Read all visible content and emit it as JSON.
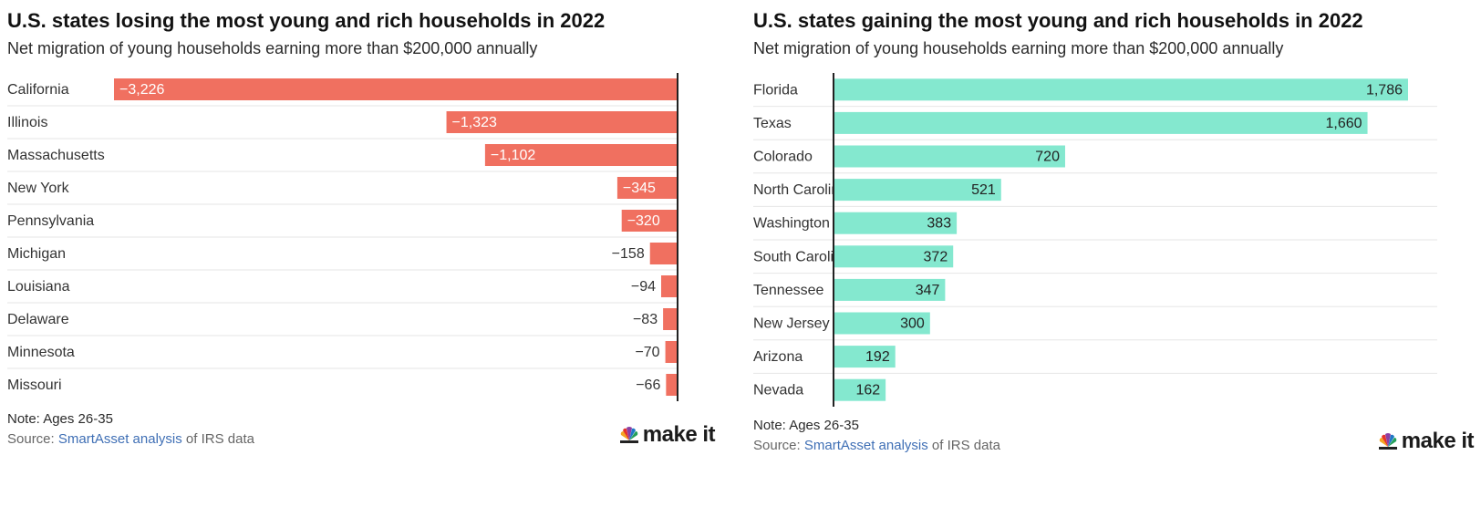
{
  "charts": [
    {
      "title": "U.S. states losing the most young and rich households in 2022",
      "subtitle": "Net migration of young households earning more than $200,000 annually",
      "note": "Note: Ages 26-35",
      "source_prefix": "Source: ",
      "source_link": "SmartAsset analysis",
      "source_suffix": " of IRS data",
      "brand_logo": "cnbc-peacock-icon",
      "brand_text": "make it"
    },
    {
      "title": "U.S. states gaining the most young and rich households in 2022",
      "subtitle": "Net migration of young households earning more than $200,000 annually",
      "note": "Note: Ages 26-35",
      "source_prefix": "Source: ",
      "source_link": "SmartAsset analysis",
      "source_suffix": " of IRS data",
      "brand_logo": "cnbc-peacock-icon",
      "brand_text": "make it"
    }
  ],
  "colors": {
    "negative_bar": "#f07060",
    "positive_bar": "#84e8cf",
    "axis": "#222222",
    "link": "#3f6fb5"
  },
  "chart_data": [
    {
      "type": "bar",
      "orientation": "horizontal",
      "title": "U.S. states losing the most young and rich households in 2022",
      "subtitle": "Net migration of young households earning more than $200,000 annually",
      "categories": [
        "California",
        "Illinois",
        "Massachusetts",
        "New York",
        "Pennsylvania",
        "Michigan",
        "Louisiana",
        "Delaware",
        "Minnesota",
        "Missouri"
      ],
      "values": [
        -3226,
        -1323,
        -1102,
        -345,
        -320,
        -158,
        -94,
        -83,
        -70,
        -66
      ],
      "value_labels": [
        "−3,226",
        "−1,323",
        "−1,102",
        "−345",
        "−320",
        "−158",
        "−94",
        "−83",
        "−70",
        "−66"
      ],
      "xlim": [
        -3226,
        0
      ],
      "grid": false,
      "bar_color": "#f07060"
    },
    {
      "type": "bar",
      "orientation": "horizontal",
      "title": "U.S. states gaining the most young and rich households in 2022",
      "subtitle": "Net migration of young households earning more than $200,000 annually",
      "categories": [
        "Florida",
        "Texas",
        "Colorado",
        "North Carolina",
        "Washington",
        "South Carolina",
        "Tennessee",
        "New Jersey",
        "Arizona",
        "Nevada"
      ],
      "values": [
        1786,
        1660,
        720,
        521,
        383,
        372,
        347,
        300,
        192,
        162
      ],
      "value_labels": [
        "1,786",
        "1,660",
        "720",
        "521",
        "383",
        "372",
        "347",
        "300",
        "192",
        "162"
      ],
      "xlim": [
        0,
        1786
      ],
      "grid": false,
      "bar_color": "#84e8cf"
    }
  ]
}
